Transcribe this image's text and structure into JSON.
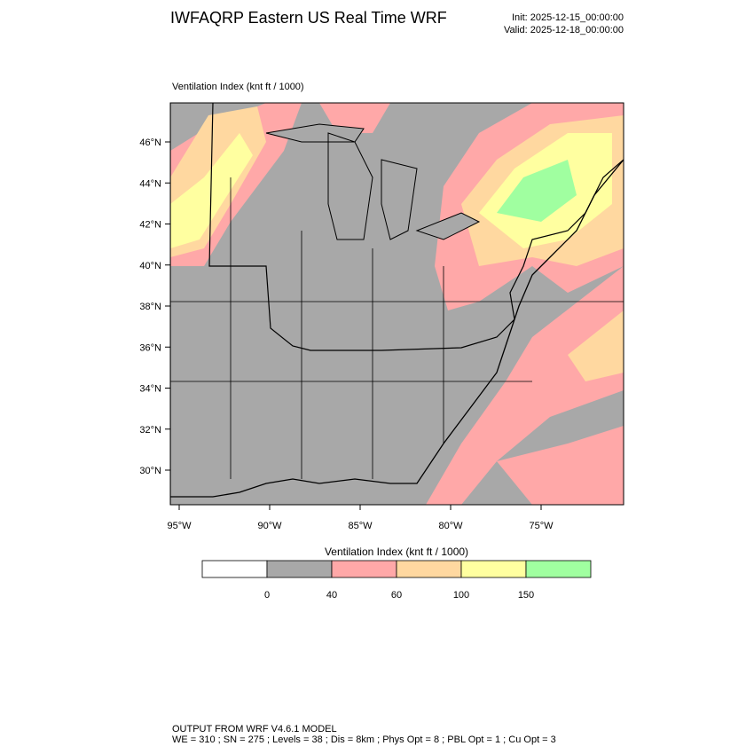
{
  "header": {
    "title": "IWFAQRP Eastern US Real Time WRF",
    "init": "Init: 2025-12-15_00:00:00",
    "valid": "Valid: 2025-12-18_00:00:00"
  },
  "map": {
    "label": "Ventilation Index   (knt ft / 1000)",
    "lat_labels": [
      "46°N",
      "44°N",
      "42°N",
      "40°N",
      "38°N",
      "36°N",
      "34°N",
      "32°N",
      "30°N"
    ],
    "lon_labels": [
      "95°W",
      "90°W",
      "85°W",
      "80°W",
      "75°W"
    ]
  },
  "colorbar": {
    "title": "Ventilation Index  (knt ft / 1000)",
    "colors": [
      "#ffffff",
      "#a8a8a8",
      "#ffa8a8",
      "#ffd8a0",
      "#ffffa0",
      "#a0ffa0"
    ],
    "ticks": [
      0,
      40,
      60,
      100,
      150
    ]
  },
  "footer": {
    "line1": "OUTPUT FROM WRF V4.6.1 MODEL",
    "line2": "WE = 310 ; SN = 275 ; Levels = 38 ; Dis = 8km ; Phys Opt = 8 ; PBL Opt = 1 ; Cu Opt = 3"
  }
}
